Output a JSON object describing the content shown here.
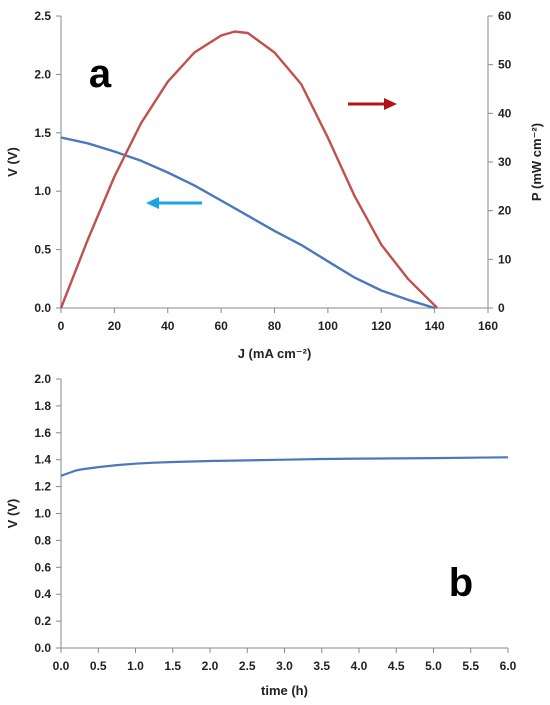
{
  "colors": {
    "voltage": "#4a78c0",
    "power": "#c0504d",
    "arrow_left": "#1aa6e6",
    "arrow_right": "#b01414",
    "axis": "#888888"
  },
  "chart_data": [
    {
      "type": "line",
      "panel_label": "a",
      "xlabel": "J (mA cm⁻²)",
      "ylabel": "V (V)",
      "y2label": "P (mW cm⁻²)",
      "xlim": [
        0,
        160
      ],
      "ylim": [
        0,
        2.5
      ],
      "y2lim": [
        0,
        60
      ],
      "xticks": [
        0,
        20,
        40,
        60,
        80,
        100,
        120,
        140,
        160
      ],
      "xtick_labels": [
        "0",
        "20",
        "40",
        "60",
        "80",
        "100",
        "120",
        "140",
        "160"
      ],
      "yticks": [
        0,
        0.5,
        1,
        1.5,
        2,
        2.5
      ],
      "ytick_labels": [
        "0.0",
        "0.5",
        "1.0",
        "1.5",
        "2.0",
        "2.5"
      ],
      "y2ticks": [
        0,
        10,
        20,
        30,
        40,
        50,
        60
      ],
      "y2tick_labels": [
        "0",
        "10",
        "20",
        "30",
        "40",
        "50",
        "60"
      ],
      "grid": false,
      "series": [
        {
          "axis": "left",
          "color": "#4a78c0",
          "x": [
            0,
            10,
            20,
            30,
            40,
            50,
            60,
            70,
            80,
            90,
            100,
            110,
            120,
            130,
            140
          ],
          "y": [
            1.46,
            1.41,
            1.34,
            1.26,
            1.16,
            1.05,
            0.92,
            0.79,
            0.66,
            0.54,
            0.4,
            0.26,
            0.15,
            0.07,
            0.0
          ]
        },
        {
          "axis": "right",
          "color": "#c0504d",
          "x": [
            0,
            10,
            20,
            30,
            40,
            50,
            60,
            65,
            70,
            80,
            90,
            100,
            110,
            120,
            130,
            141
          ],
          "y": [
            0,
            14,
            27,
            38,
            46.5,
            52.5,
            56,
            56.8,
            56.5,
            52.5,
            46,
            35,
            23,
            13,
            6,
            0
          ]
        }
      ]
    },
    {
      "type": "line",
      "panel_label": "b",
      "xlabel": "time (h)",
      "ylabel": "V (V)",
      "xlim": [
        0,
        6
      ],
      "ylim": [
        0,
        2
      ],
      "xticks": [
        0,
        0.5,
        1,
        1.5,
        2,
        2.5,
        3,
        3.5,
        4,
        4.5,
        5,
        5.5,
        6
      ],
      "xtick_labels": [
        "0.0",
        "0.5",
        "1.0",
        "1.5",
        "2.0",
        "2.5",
        "3.0",
        "3.5",
        "4.0",
        "4.5",
        "5.0",
        "5.5",
        "6.0"
      ],
      "yticks": [
        0,
        0.2,
        0.4,
        0.6,
        0.8,
        1.0,
        1.2,
        1.4,
        1.6,
        1.8,
        2.0
      ],
      "ytick_labels": [
        "0.0",
        "0.2",
        "0.4",
        "0.6",
        "0.8",
        "1.0",
        "1.2",
        "1.4",
        "1.6",
        "1.8",
        "2.0"
      ],
      "grid": false,
      "series": [
        {
          "color": "#4a78c0",
          "x": [
            0,
            0.05,
            0.1,
            0.2,
            0.3,
            0.5,
            0.75,
            1.0,
            1.25,
            1.5,
            2.0,
            2.5,
            3.0,
            3.5,
            4.0,
            4.5,
            5.0,
            5.5,
            6.0
          ],
          "y": [
            1.28,
            1.29,
            1.3,
            1.32,
            1.33,
            1.345,
            1.36,
            1.37,
            1.378,
            1.383,
            1.39,
            1.395,
            1.4,
            1.405,
            1.408,
            1.41,
            1.412,
            1.415,
            1.418
          ]
        }
      ]
    }
  ]
}
